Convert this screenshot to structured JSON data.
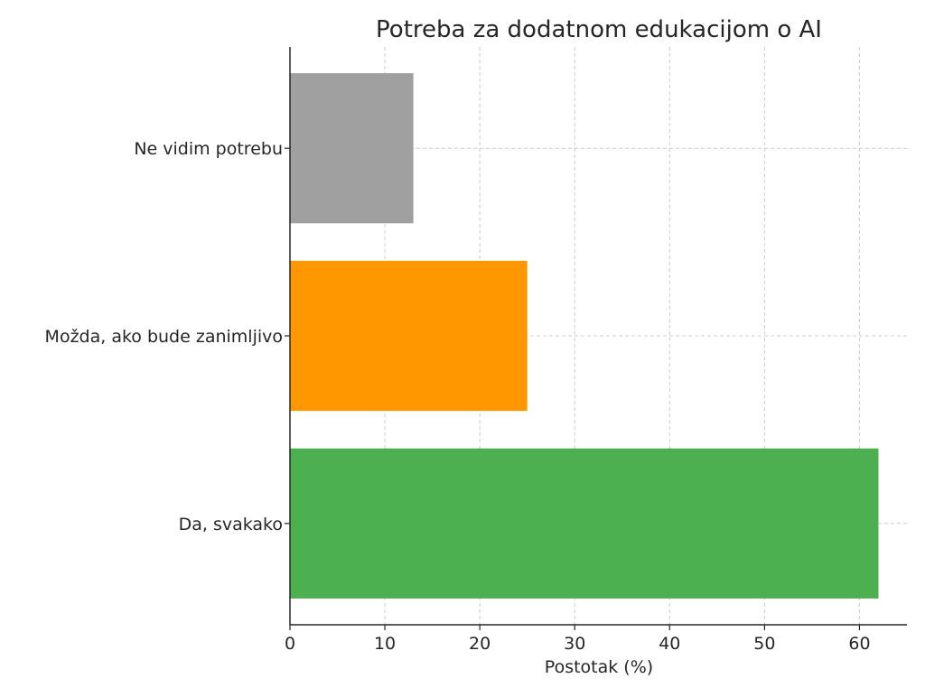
{
  "chart_data": {
    "type": "bar",
    "orientation": "horizontal",
    "title": "Potreba za dodatnom edukacijom o AI",
    "xlabel": "Postotak (%)",
    "ylabel": "",
    "categories": [
      "Da, svakako",
      "Možda, ako bude zanimljivo",
      "Ne vidim potrebu"
    ],
    "values": [
      62,
      25,
      13
    ],
    "colors": [
      "#4caf50",
      "#ff9800",
      "#a0a0a0"
    ],
    "xlim": [
      0,
      65
    ],
    "xticks": [
      0,
      10,
      20,
      30,
      40,
      50,
      60
    ],
    "grid": true
  }
}
